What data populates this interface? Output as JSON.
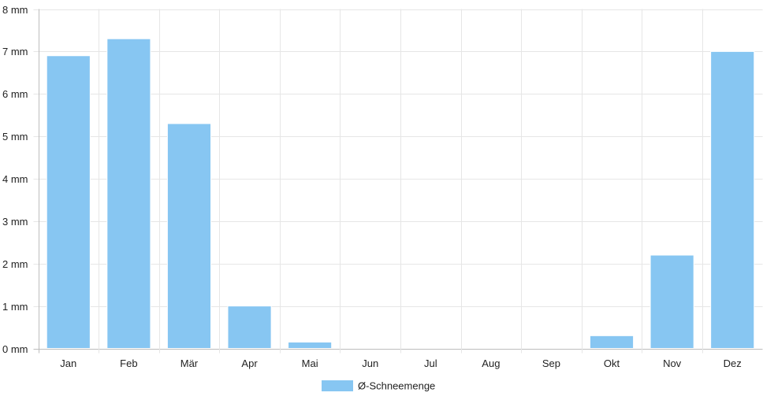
{
  "chart_data": {
    "type": "bar",
    "categories": [
      "Jan",
      "Feb",
      "Mär",
      "Apr",
      "Mai",
      "Jun",
      "Jul",
      "Aug",
      "Sep",
      "Okt",
      "Nov",
      "Dez"
    ],
    "series": [
      {
        "name": "Ø-Schneemenge",
        "values": [
          6.9,
          7.3,
          5.3,
          1.0,
          0.15,
          0,
          0,
          0,
          0,
          0.3,
          2.2,
          7.0
        ],
        "color": "#87c6f2"
      }
    ],
    "ylim": [
      0,
      8
    ],
    "yticks": [
      "0 mm",
      "1 mm",
      "2 mm",
      "3 mm",
      "4 mm",
      "5 mm",
      "6 mm",
      "7 mm",
      "8 mm"
    ],
    "grid": true,
    "legend_position": "bottom"
  }
}
